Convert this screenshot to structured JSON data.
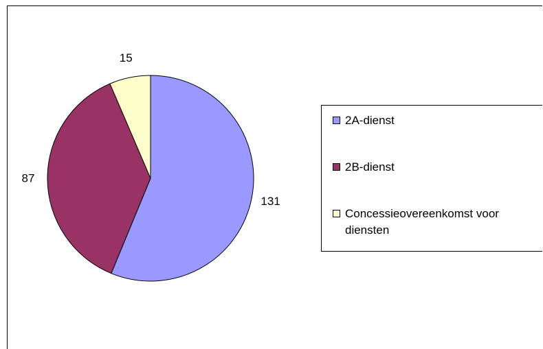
{
  "chart_data": {
    "type": "pie",
    "categories": [
      "2A-dienst",
      "2B-dienst",
      "Concessieovereenkomst voor diensten"
    ],
    "values": [
      131,
      87,
      15
    ],
    "colors": [
      "#9999ff",
      "#993366",
      "#ffffcc"
    ],
    "legend": "right"
  }
}
